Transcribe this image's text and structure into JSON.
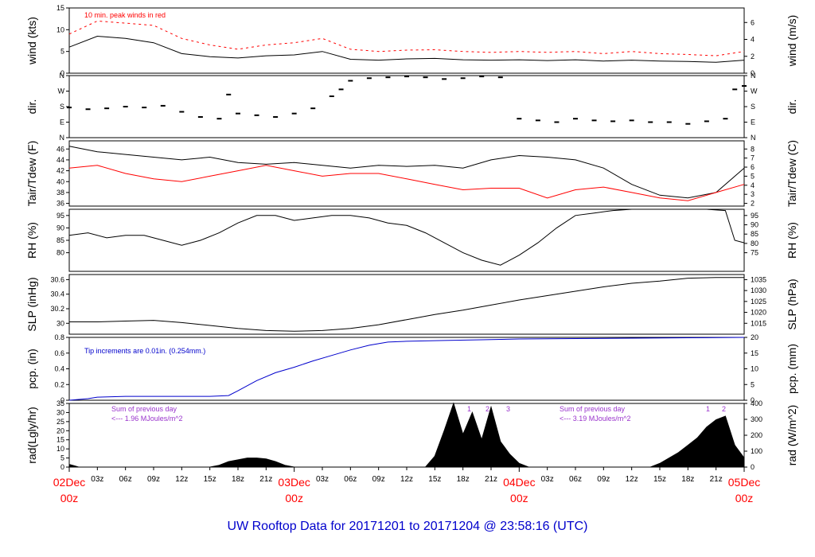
{
  "title": "UW Rooftop Data for 20171201  to  20171204 @ 23:58:16  (UTC)",
  "x_axis": {
    "hour_ticks": [
      "03z",
      "06z",
      "09z",
      "12z",
      "15z",
      "18z",
      "21z",
      "03z",
      "06z",
      "09z",
      "12z",
      "15z",
      "18z",
      "21z",
      "03z",
      "06z",
      "09z",
      "12z",
      "15z",
      "18z",
      "21z"
    ],
    "day_labels": [
      {
        "day": "02Dec",
        "hour": "00z"
      },
      {
        "day": "03Dec",
        "hour": "00z"
      },
      {
        "day": "04Dec",
        "hour": "00z"
      },
      {
        "day": "05Dec",
        "hour": "00z"
      }
    ]
  },
  "annotations": {
    "wind": "10 min. peak winds in red",
    "pcp": "Tip increments are 0.01in. (0.254mm.)",
    "rad_day1_a": "Sum of previous day",
    "rad_day1_b": "<--- 1.96 MJoules/m^2",
    "rad_day2_a": "Sum of previous day",
    "rad_day2_b": "<--- 3.19 MJoules/m^2",
    "rad_marks": [
      "1",
      "2",
      "3",
      "1",
      "2"
    ]
  },
  "colors": {
    "primary": "#000000",
    "peak": "#ff0000",
    "dew": "#ff0000",
    "pcp": "#0000cc",
    "note": "#9933cc",
    "title": "#0000cc"
  },
  "chart_data": [
    {
      "type": "line",
      "ylabel_left": "wind (kts)",
      "ylabel_right": "wind (m/s)",
      "ylim": [
        0,
        15
      ],
      "yticks": [
        0,
        5,
        10,
        15
      ],
      "yticks_right": [
        0,
        2,
        4,
        6
      ],
      "right_ylim": [
        0,
        7.72
      ],
      "x_hours": [
        0,
        3,
        6,
        9,
        12,
        15,
        18,
        21,
        24,
        27,
        30,
        33,
        36,
        39,
        42,
        45,
        48,
        51,
        54,
        57,
        60,
        63,
        66,
        69,
        72
      ],
      "series": [
        {
          "values": [
            6,
            8.5,
            8,
            7,
            4.5,
            3.8,
            3.5,
            4,
            4.2,
            5,
            3.2,
            3,
            3.3,
            3.4,
            3.1,
            3,
            3.1,
            2.9,
            3.1,
            2.8,
            3,
            2.8,
            2.7,
            2.5,
            3
          ]
        },
        {
          "name": "10 min. peak winds",
          "values": [
            9,
            12,
            11.5,
            11,
            8,
            6.5,
            5.5,
            6.5,
            7,
            8,
            5.5,
            5,
            5.3,
            5.4,
            5,
            4.8,
            5,
            4.8,
            5,
            4.5,
            5,
            4.5,
            4.3,
            4,
            5
          ]
        }
      ]
    },
    {
      "type": "scatter",
      "ylabel_left": "dir.",
      "ylabel_right": "dir.",
      "yticks": [
        "N",
        "E",
        "S",
        "W",
        "N"
      ],
      "ylim": [
        0,
        360
      ],
      "x_hours": [
        0,
        2,
        4,
        6,
        8,
        10,
        12,
        14,
        16,
        17,
        18,
        20,
        22,
        24,
        26,
        28,
        29,
        30,
        32,
        34,
        36,
        38,
        40,
        42,
        44,
        46,
        48,
        50,
        52,
        54,
        56,
        58,
        60,
        62,
        64,
        66,
        68,
        70,
        71,
        72
      ],
      "values": [
        175,
        165,
        170,
        180,
        175,
        185,
        150,
        120,
        110,
        250,
        140,
        130,
        120,
        140,
        170,
        240,
        280,
        330,
        345,
        350,
        355,
        350,
        340,
        345,
        355,
        350,
        110,
        100,
        90,
        110,
        100,
        95,
        100,
        90,
        90,
        80,
        95,
        110,
        280,
        300
      ]
    },
    {
      "type": "line",
      "ylabel_left": "Tair/Tdew (F)",
      "ylabel_right": "Tair/Tdew (C)",
      "ylim": [
        35.5,
        47.5
      ],
      "yticks": [
        36,
        38,
        40,
        42,
        44,
        46
      ],
      "yticks_right": [
        2,
        3,
        4,
        5,
        6,
        7,
        8
      ],
      "x_hours": [
        0,
        3,
        6,
        9,
        12,
        15,
        18,
        21,
        24,
        27,
        30,
        33,
        36,
        39,
        42,
        45,
        48,
        51,
        54,
        57,
        60,
        63,
        66,
        69,
        72
      ],
      "series": [
        {
          "name": "Tair",
          "values": [
            46.5,
            45.5,
            45,
            44.5,
            44,
            44.5,
            43.5,
            43.2,
            43.5,
            43,
            42.5,
            43,
            42.8,
            43,
            42.5,
            44,
            44.8,
            44.5,
            44,
            42.5,
            39.5,
            37.5,
            37,
            38,
            42.5
          ]
        },
        {
          "name": "Tdew",
          "values": [
            42.5,
            43,
            41.5,
            40.5,
            40,
            41,
            42,
            43,
            42,
            41,
            41.5,
            41.5,
            40.5,
            39.5,
            38.5,
            38.8,
            38.8,
            37,
            38.5,
            39,
            38,
            37,
            36.5,
            38,
            39.5
          ]
        }
      ]
    },
    {
      "type": "line",
      "ylabel_left": "RH (%)",
      "ylabel_right": "RH (%)",
      "ylim": [
        72.5,
        97.5
      ],
      "yticks": [
        80,
        85,
        90,
        95
      ],
      "yticks_right": [
        75,
        80,
        85,
        90,
        95
      ],
      "x_hours": [
        0,
        2,
        4,
        6,
        8,
        10,
        12,
        14,
        16,
        18,
        20,
        22,
        24,
        26,
        28,
        30,
        32,
        34,
        36,
        38,
        40,
        42,
        44,
        46,
        48,
        50,
        52,
        54,
        56,
        58,
        60,
        62,
        64,
        66,
        68,
        70,
        71,
        72
      ],
      "values": [
        87,
        88,
        86,
        87,
        87,
        85,
        83,
        85,
        88,
        92,
        95,
        95,
        93,
        94,
        95,
        95,
        94,
        92,
        91,
        88,
        84,
        80,
        77,
        75,
        79,
        84,
        90,
        95,
        96,
        97,
        97.5,
        97.5,
        97.5,
        97.5,
        97.5,
        97,
        85,
        84
      ]
    },
    {
      "type": "line",
      "ylabel_left": "SLP (inHg)",
      "ylabel_right": "SLP (hPa)",
      "ylim": [
        29.85,
        30.67
      ],
      "yticks": [
        30.0,
        30.2,
        30.4,
        30.6
      ],
      "yticks_right": [
        1015,
        1020,
        1025,
        1030,
        1035
      ],
      "x_hours": [
        0,
        3,
        6,
        9,
        12,
        15,
        18,
        21,
        24,
        27,
        30,
        33,
        36,
        39,
        42,
        45,
        48,
        51,
        54,
        57,
        60,
        63,
        66,
        69,
        72
      ],
      "values": [
        30.02,
        30.02,
        30.03,
        30.04,
        30.01,
        29.97,
        29.93,
        29.9,
        29.89,
        29.9,
        29.93,
        29.98,
        30.05,
        30.12,
        30.18,
        30.25,
        30.32,
        30.38,
        30.44,
        30.5,
        30.55,
        30.58,
        30.62,
        30.63,
        30.63
      ]
    },
    {
      "type": "line",
      "ylabel_left": "pcp. (in)",
      "ylabel_right": "pcp. (mm)",
      "ylim": [
        0,
        0.8
      ],
      "yticks": [
        0.0,
        0.2,
        0.4,
        0.6,
        0.8
      ],
      "yticks_right": [
        0,
        5,
        10,
        15,
        20
      ],
      "x_hours": [
        0,
        2,
        3,
        6,
        9,
        12,
        15,
        17,
        18,
        20,
        22,
        24,
        26,
        28,
        30,
        32,
        34,
        36,
        40,
        44,
        48,
        54,
        60,
        66,
        72
      ],
      "values": [
        0,
        0.02,
        0.04,
        0.05,
        0.05,
        0.05,
        0.05,
        0.06,
        0.12,
        0.25,
        0.35,
        0.42,
        0.5,
        0.57,
        0.64,
        0.7,
        0.74,
        0.75,
        0.76,
        0.77,
        0.78,
        0.785,
        0.79,
        0.795,
        0.8
      ]
    },
    {
      "type": "area",
      "ylabel_left": "rad(Lgly/hr)",
      "ylabel_right": "rad (W/m^2)",
      "ylim": [
        0,
        35
      ],
      "yticks": [
        0,
        5,
        10,
        15,
        20,
        25,
        30,
        35
      ],
      "yticks_right": [
        0,
        100,
        200,
        300,
        400
      ],
      "x_hours": [
        0,
        0.5,
        1,
        15,
        16,
        17,
        18,
        19,
        20,
        21,
        22,
        23,
        24,
        38,
        39,
        40,
        41,
        42,
        43,
        44,
        45,
        46,
        47,
        48,
        49,
        62,
        63,
        64,
        65,
        66,
        67,
        68,
        69,
        70,
        71,
        72
      ],
      "values": [
        1.5,
        0.8,
        0,
        0,
        1,
        3,
        4,
        5,
        5,
        4.5,
        3,
        1,
        0,
        0,
        6,
        20,
        35,
        18,
        30,
        15,
        33,
        14,
        7,
        2,
        0,
        0,
        2,
        5,
        8,
        12,
        16,
        22,
        26,
        28,
        12,
        5
      ]
    }
  ]
}
